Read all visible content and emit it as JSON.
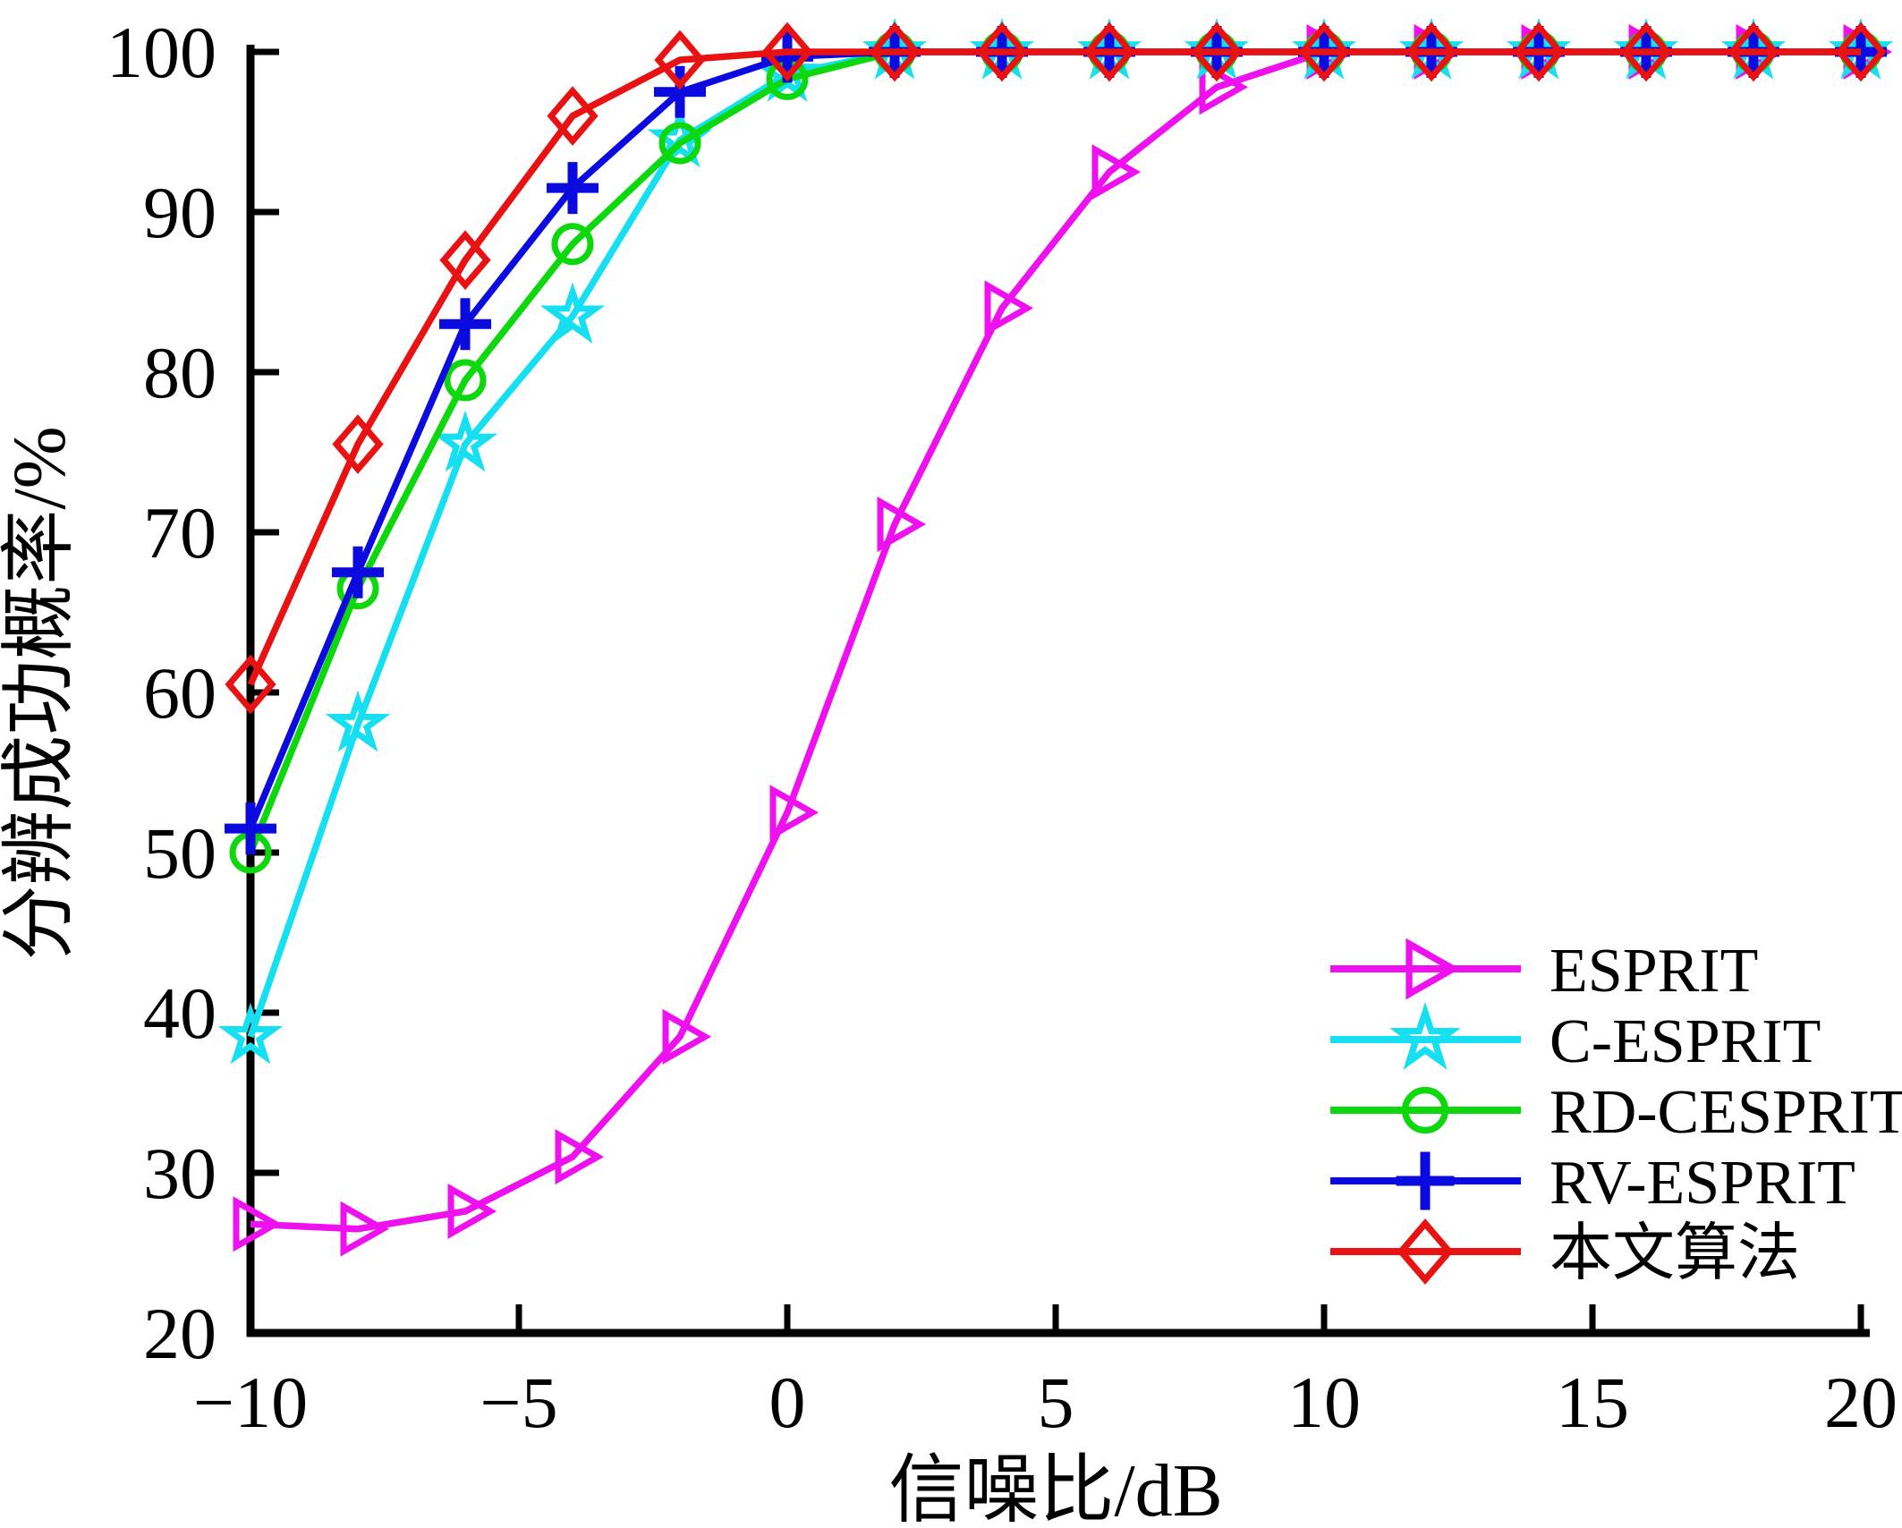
{
  "figure": {
    "background": "#ffffff",
    "axis_color": "#000000"
  },
  "chart_data": {
    "type": "line",
    "title": "",
    "xlabel": "信噪比/dB",
    "ylabel": "分辨成功概率/%",
    "xlim": [
      -10,
      20
    ],
    "ylim": [
      20,
      100
    ],
    "x_ticks": [
      -10,
      -5,
      0,
      5,
      10,
      15,
      20
    ],
    "y_ticks": [
      20,
      30,
      40,
      50,
      60,
      70,
      80,
      90,
      100
    ],
    "grid": false,
    "legend_position": "lower right",
    "x": [
      -10,
      -8,
      -6,
      -4,
      -2,
      0,
      2,
      4,
      6,
      8,
      10,
      12,
      14,
      16,
      18,
      20
    ],
    "series": [
      {
        "name": "ESPRIT",
        "color": "#ee10ee",
        "marker": "triangle-right",
        "values": [
          26.8,
          26.5,
          27.6,
          31.0,
          38.5,
          52.5,
          70.5,
          84.0,
          92.5,
          97.8,
          100,
          100,
          100,
          100,
          100,
          100
        ]
      },
      {
        "name": "C-ESPRIT",
        "color": "#15dff0",
        "marker": "star",
        "values": [
          38.5,
          58.0,
          75.5,
          83.5,
          94.5,
          98.6,
          100,
          100,
          100,
          100,
          100,
          100,
          100,
          100,
          100,
          100
        ]
      },
      {
        "name": "RD-CESPRIT",
        "color": "#0dd80d",
        "marker": "circle",
        "values": [
          50.0,
          66.5,
          79.5,
          88.0,
          94.3,
          98.3,
          100,
          100,
          100,
          100,
          100,
          100,
          100,
          100,
          100,
          100
        ]
      },
      {
        "name": "RV-ESPRIT",
        "color": "#0b0bdf",
        "marker": "plus",
        "values": [
          51.5,
          67.5,
          83.0,
          91.5,
          97.5,
          99.7,
          100,
          100,
          100,
          100,
          100,
          100,
          100,
          100,
          100,
          100
        ]
      },
      {
        "name": "本文算法",
        "color": "#e81212",
        "marker": "diamond",
        "values": [
          60.5,
          75.5,
          87.0,
          96.0,
          99.5,
          100,
          100,
          100,
          100,
          100,
          100,
          100,
          100,
          100,
          100,
          100
        ]
      }
    ]
  }
}
